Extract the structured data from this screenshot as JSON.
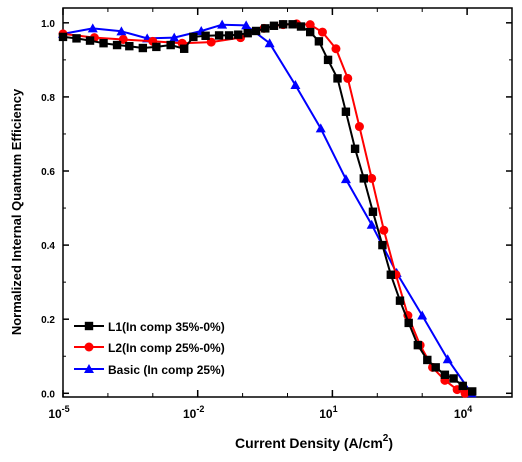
{
  "chart_data": {
    "type": "line",
    "xlabel": "Current Density (A/cm",
    "xlabel_sup": "2",
    "xlabel_close": ")",
    "ylabel": "Normalized Internal Quantum Efficiency",
    "x_scale": "log",
    "xlim": [
      1e-05,
      100000
    ],
    "ylim": [
      -0.01,
      1.04
    ],
    "x_ticks": [
      {
        "value": 1e-05,
        "base": "10",
        "exp": "-5"
      },
      {
        "value": 0.01,
        "base": "10",
        "exp": "-2"
      },
      {
        "value": 10,
        "base": "10",
        "exp": "1"
      },
      {
        "value": 10000,
        "base": "10",
        "exp": "4"
      }
    ],
    "y_ticks": [
      {
        "value": 0.0,
        "label": "0.0"
      },
      {
        "value": 0.2,
        "label": "0.2"
      },
      {
        "value": 0.4,
        "label": "0.4"
      },
      {
        "value": 0.6,
        "label": "0.6"
      },
      {
        "value": 0.8,
        "label": "0.8"
      },
      {
        "value": 1.0,
        "label": "1.0"
      }
    ],
    "grid": false,
    "legend_position": "bottom-left",
    "series": [
      {
        "name": "L1(In comp 35%-0%)",
        "color": "#000000",
        "marker": "square",
        "points": [
          [
            1e-05,
            0.962
          ],
          [
            2e-05,
            0.958
          ],
          [
            4e-05,
            0.952
          ],
          [
            8e-05,
            0.945
          ],
          [
            0.00016,
            0.94
          ],
          [
            0.0003,
            0.937
          ],
          [
            0.0006,
            0.932
          ],
          [
            0.0012,
            0.935
          ],
          [
            0.0025,
            0.94
          ],
          [
            0.005,
            0.93
          ],
          [
            0.008,
            0.962
          ],
          [
            0.015,
            0.965
          ],
          [
            0.03,
            0.966
          ],
          [
            0.05,
            0.966
          ],
          [
            0.08,
            0.968
          ],
          [
            0.13,
            0.972
          ],
          [
            0.2,
            0.978
          ],
          [
            0.32,
            0.985
          ],
          [
            0.5,
            0.992
          ],
          [
            0.8,
            0.996
          ],
          [
            1.3,
            0.996
          ],
          [
            2.0,
            0.99
          ],
          [
            3.2,
            0.975
          ],
          [
            5.0,
            0.95
          ],
          [
            8.0,
            0.9
          ],
          [
            13,
            0.85
          ],
          [
            20,
            0.76
          ],
          [
            32,
            0.66
          ],
          [
            50,
            0.58
          ],
          [
            80,
            0.49
          ],
          [
            130,
            0.4
          ],
          [
            200,
            0.32
          ],
          [
            320,
            0.25
          ],
          [
            500,
            0.19
          ],
          [
            800,
            0.13
          ],
          [
            1300,
            0.09
          ],
          [
            2000,
            0.07
          ],
          [
            3200,
            0.05
          ],
          [
            5000,
            0.04
          ],
          [
            8000,
            0.02
          ],
          [
            13000,
            0.005
          ]
        ]
      },
      {
        "name": "L2(In comp 25%-0%)",
        "color": "#ff0000",
        "marker": "circle",
        "points": [
          [
            1e-05,
            0.97
          ],
          [
            5e-05,
            0.96
          ],
          [
            0.00022,
            0.955
          ],
          [
            0.001,
            0.95
          ],
          [
            0.0045,
            0.945
          ],
          [
            0.02,
            0.948
          ],
          [
            0.09,
            0.96
          ],
          [
            0.3,
            0.985
          ],
          [
            0.8,
            0.995
          ],
          [
            1.6,
            0.997
          ],
          [
            3.2,
            0.995
          ],
          [
            6,
            0.975
          ],
          [
            12,
            0.93
          ],
          [
            22,
            0.85
          ],
          [
            40,
            0.72
          ],
          [
            75,
            0.58
          ],
          [
            140,
            0.44
          ],
          [
            260,
            0.32
          ],
          [
            480,
            0.21
          ],
          [
            900,
            0.13
          ],
          [
            1700,
            0.07
          ],
          [
            3200,
            0.035
          ],
          [
            6000,
            0.01
          ],
          [
            9000,
            0.0
          ]
        ]
      },
      {
        "name": "Basic (In comp 25%)",
        "color": "#0000ff",
        "marker": "triangle",
        "points": [
          [
            1e-05,
            0.97
          ],
          [
            4.6e-05,
            0.985
          ],
          [
            0.0002,
            0.977
          ],
          [
            0.00075,
            0.958
          ],
          [
            0.003,
            0.96
          ],
          [
            0.012,
            0.978
          ],
          [
            0.035,
            0.995
          ],
          [
            0.12,
            0.993
          ],
          [
            0.4,
            0.945
          ],
          [
            1.5,
            0.832
          ],
          [
            5.5,
            0.715
          ],
          [
            20,
            0.578
          ],
          [
            75,
            0.455
          ],
          [
            270,
            0.325
          ],
          [
            1000,
            0.21
          ],
          [
            3700,
            0.092
          ],
          [
            12500,
            0.0
          ]
        ]
      }
    ]
  }
}
